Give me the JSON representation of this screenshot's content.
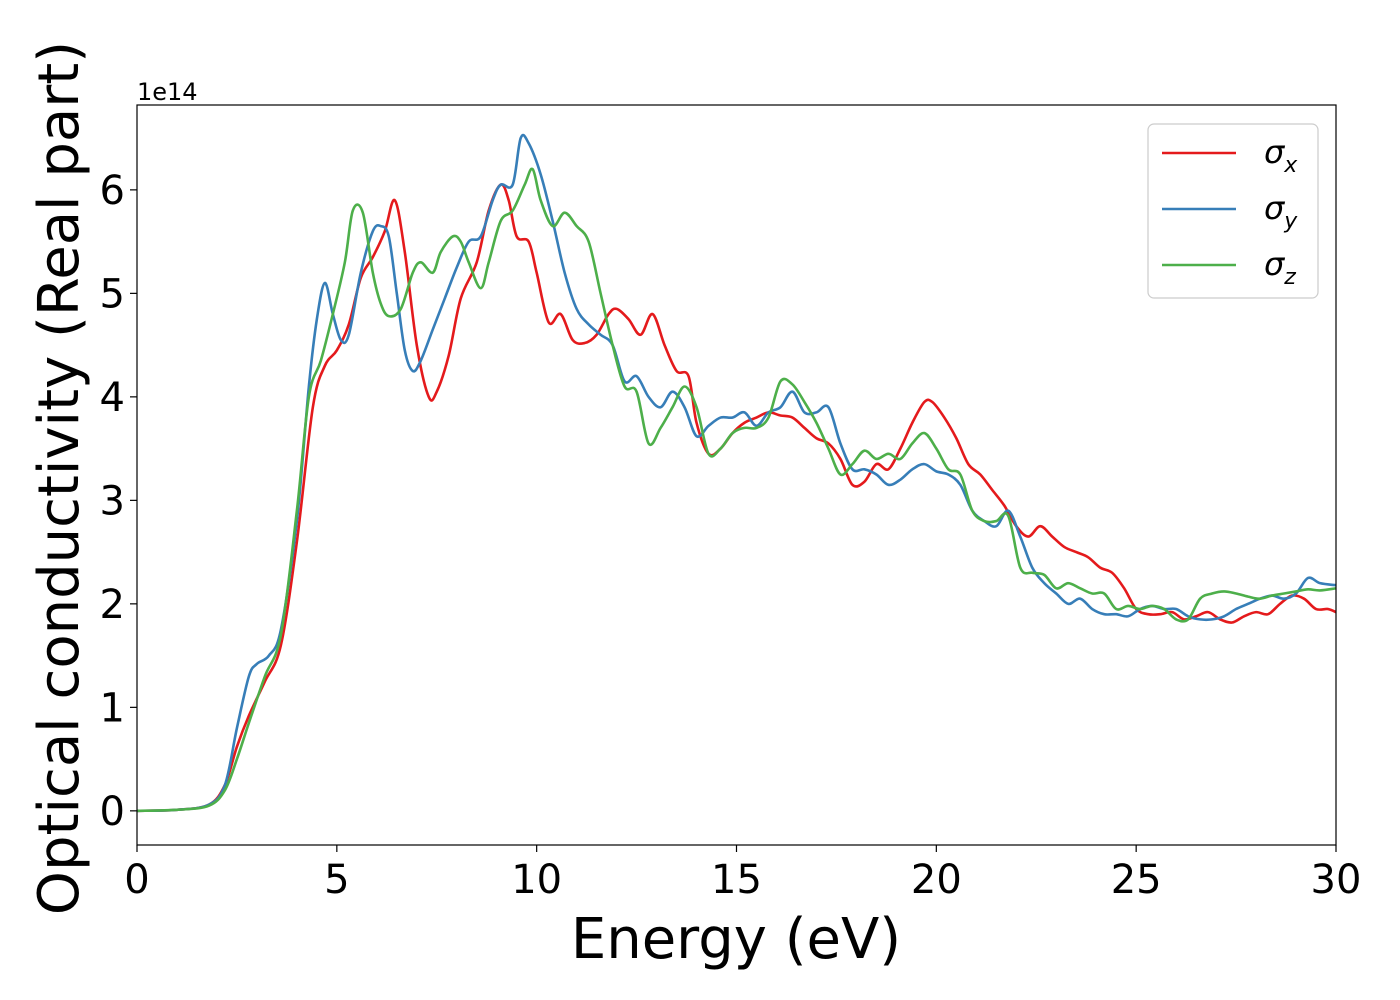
{
  "chart_data": {
    "type": "line",
    "xlabel": "Energy (eV)",
    "ylabel": "Optical conductivity (Real part)",
    "y_offset_label": "1e14",
    "xlim": [
      0,
      30
    ],
    "ylim": [
      -0.33,
      6.82
    ],
    "xticks": [
      0,
      5,
      10,
      15,
      20,
      25,
      30
    ],
    "yticks": [
      0,
      1,
      2,
      3,
      4,
      5,
      6
    ],
    "grid": false,
    "legend_position": "top-right",
    "series": [
      {
        "name": "σx",
        "symbol": "σ",
        "subscript": "x",
        "color": "#e41a1c",
        "x": [
          0,
          1,
          1.8,
          2.2,
          2.5,
          2.8,
          3.2,
          3.6,
          4.0,
          4.4,
          4.7,
          5.0,
          5.3,
          5.6,
          5.9,
          6.2,
          6.45,
          6.7,
          7.0,
          7.3,
          7.5,
          7.8,
          8.1,
          8.5,
          8.8,
          9.1,
          9.3,
          9.5,
          9.8,
          10.0,
          10.3,
          10.6,
          10.9,
          11.2,
          11.5,
          11.8,
          12.0,
          12.3,
          12.6,
          12.9,
          13.2,
          13.5,
          13.8,
          14.0,
          14.3,
          14.6,
          14.9,
          15.2,
          15.5,
          15.8,
          16.1,
          16.4,
          16.7,
          17.0,
          17.3,
          17.6,
          17.9,
          18.2,
          18.5,
          18.8,
          19.1,
          19.4,
          19.7,
          19.9,
          20.2,
          20.5,
          20.8,
          21.1,
          21.4,
          21.7,
          22.0,
          22.3,
          22.6,
          22.9,
          23.2,
          23.5,
          23.8,
          24.1,
          24.4,
          24.7,
          25.0,
          25.3,
          25.6,
          25.9,
          26.2,
          26.5,
          26.8,
          27.1,
          27.4,
          27.7,
          28.0,
          28.3,
          28.6,
          28.9,
          29.2,
          29.5,
          29.8,
          30.0
        ],
        "y": [
          0,
          0.01,
          0.06,
          0.25,
          0.62,
          0.92,
          1.25,
          1.6,
          2.6,
          3.9,
          4.3,
          4.45,
          4.7,
          5.15,
          5.35,
          5.6,
          5.9,
          5.4,
          4.5,
          4.0,
          4.05,
          4.4,
          4.95,
          5.3,
          5.8,
          6.05,
          5.9,
          5.55,
          5.5,
          5.2,
          4.72,
          4.8,
          4.55,
          4.52,
          4.6,
          4.8,
          4.85,
          4.75,
          4.6,
          4.8,
          4.5,
          4.25,
          4.2,
          3.75,
          3.45,
          3.5,
          3.65,
          3.75,
          3.8,
          3.85,
          3.82,
          3.8,
          3.7,
          3.6,
          3.55,
          3.4,
          3.15,
          3.18,
          3.35,
          3.3,
          3.5,
          3.75,
          3.95,
          3.95,
          3.8,
          3.6,
          3.35,
          3.25,
          3.1,
          2.95,
          2.75,
          2.65,
          2.75,
          2.65,
          2.55,
          2.5,
          2.45,
          2.35,
          2.3,
          2.15,
          1.95,
          1.9,
          1.9,
          1.92,
          1.85,
          1.88,
          1.92,
          1.85,
          1.82,
          1.88,
          1.92,
          1.9,
          2.0,
          2.08,
          2.05,
          1.95,
          1.95,
          1.92
        ]
      },
      {
        "name": "σy",
        "symbol": "σ",
        "subscript": "y",
        "color": "#377eb8",
        "x": [
          0,
          1,
          1.8,
          2.2,
          2.5,
          2.8,
          3.0,
          3.3,
          3.6,
          4.0,
          4.3,
          4.5,
          4.7,
          4.9,
          5.1,
          5.3,
          5.6,
          5.9,
          6.1,
          6.3,
          6.5,
          6.7,
          6.9,
          7.1,
          7.4,
          7.7,
          8.0,
          8.3,
          8.6,
          8.9,
          9.1,
          9.4,
          9.6,
          9.8,
          10.1,
          10.4,
          10.7,
          11.0,
          11.3,
          11.6,
          11.9,
          12.2,
          12.5,
          12.8,
          13.1,
          13.4,
          13.7,
          14.0,
          14.3,
          14.6,
          14.9,
          15.2,
          15.5,
          15.8,
          16.1,
          16.4,
          16.7,
          17.0,
          17.3,
          17.6,
          17.9,
          18.2,
          18.5,
          18.8,
          19.1,
          19.4,
          19.7,
          20.0,
          20.3,
          20.6,
          20.9,
          21.2,
          21.5,
          21.8,
          22.1,
          22.4,
          22.7,
          23.0,
          23.3,
          23.6,
          23.9,
          24.2,
          24.5,
          24.8,
          25.1,
          25.4,
          25.7,
          26.0,
          26.3,
          26.6,
          26.9,
          27.2,
          27.5,
          27.8,
          28.1,
          28.4,
          28.7,
          29.0,
          29.3,
          29.6,
          30.0
        ],
        "y": [
          0,
          0.01,
          0.06,
          0.25,
          0.8,
          1.3,
          1.42,
          1.5,
          1.75,
          2.8,
          4.1,
          4.75,
          5.1,
          4.8,
          4.55,
          4.6,
          5.2,
          5.6,
          5.65,
          5.55,
          5.0,
          4.45,
          4.25,
          4.35,
          4.65,
          4.95,
          5.25,
          5.5,
          5.55,
          5.9,
          6.05,
          6.05,
          6.5,
          6.45,
          6.15,
          5.7,
          5.2,
          4.85,
          4.7,
          4.6,
          4.5,
          4.15,
          4.2,
          4.0,
          3.9,
          4.05,
          3.9,
          3.62,
          3.72,
          3.8,
          3.8,
          3.85,
          3.72,
          3.85,
          3.9,
          4.05,
          3.85,
          3.85,
          3.9,
          3.55,
          3.3,
          3.3,
          3.25,
          3.15,
          3.2,
          3.3,
          3.35,
          3.28,
          3.25,
          3.15,
          2.9,
          2.8,
          2.75,
          2.9,
          2.65,
          2.35,
          2.2,
          2.1,
          2.0,
          2.05,
          1.95,
          1.9,
          1.9,
          1.88,
          1.95,
          1.98,
          1.95,
          1.95,
          1.88,
          1.85,
          1.85,
          1.88,
          1.95,
          2.0,
          2.05,
          2.08,
          2.05,
          2.1,
          2.25,
          2.2,
          2.18
        ]
      },
      {
        "name": "σz",
        "symbol": "σ",
        "subscript": "z",
        "color": "#4daf4a",
        "x": [
          0,
          1,
          1.8,
          2.2,
          2.5,
          2.8,
          3.2,
          3.6,
          4.0,
          4.3,
          4.6,
          4.9,
          5.2,
          5.4,
          5.65,
          5.9,
          6.1,
          6.3,
          6.6,
          6.9,
          7.1,
          7.4,
          7.6,
          7.9,
          8.1,
          8.3,
          8.6,
          8.8,
          9.1,
          9.4,
          9.7,
          9.9,
          10.1,
          10.4,
          10.7,
          11.0,
          11.3,
          11.6,
          11.9,
          12.2,
          12.5,
          12.8,
          13.1,
          13.4,
          13.7,
          14.0,
          14.3,
          14.6,
          14.9,
          15.2,
          15.5,
          15.8,
          16.1,
          16.4,
          16.7,
          17.0,
          17.3,
          17.6,
          17.9,
          18.2,
          18.5,
          18.8,
          19.1,
          19.4,
          19.7,
          20.0,
          20.3,
          20.6,
          20.9,
          21.2,
          21.5,
          21.8,
          22.1,
          22.4,
          22.7,
          23.0,
          23.3,
          23.6,
          23.9,
          24.2,
          24.5,
          24.8,
          25.1,
          25.4,
          25.7,
          26.0,
          26.3,
          26.6,
          26.9,
          27.2,
          27.5,
          27.8,
          28.1,
          28.4,
          28.7,
          29.0,
          29.3,
          29.6,
          30.0
        ],
        "y": [
          0,
          0.01,
          0.05,
          0.2,
          0.5,
          0.85,
          1.3,
          1.7,
          2.9,
          4.0,
          4.35,
          4.8,
          5.3,
          5.8,
          5.78,
          5.2,
          4.9,
          4.78,
          4.85,
          5.2,
          5.3,
          5.2,
          5.4,
          5.55,
          5.5,
          5.3,
          5.05,
          5.3,
          5.7,
          5.8,
          6.05,
          6.2,
          5.9,
          5.65,
          5.78,
          5.65,
          5.5,
          5.0,
          4.5,
          4.1,
          4.05,
          3.55,
          3.7,
          3.9,
          4.1,
          3.9,
          3.45,
          3.5,
          3.65,
          3.7,
          3.7,
          3.8,
          4.15,
          4.12,
          3.95,
          3.75,
          3.5,
          3.25,
          3.35,
          3.48,
          3.4,
          3.45,
          3.4,
          3.55,
          3.65,
          3.5,
          3.3,
          3.25,
          2.9,
          2.8,
          2.8,
          2.85,
          2.35,
          2.3,
          2.28,
          2.15,
          2.2,
          2.15,
          2.1,
          2.1,
          1.95,
          1.98,
          1.95,
          1.98,
          1.95,
          1.85,
          1.85,
          2.05,
          2.1,
          2.12,
          2.1,
          2.07,
          2.05,
          2.08,
          2.1,
          2.12,
          2.14,
          2.13,
          2.15
        ]
      }
    ]
  }
}
